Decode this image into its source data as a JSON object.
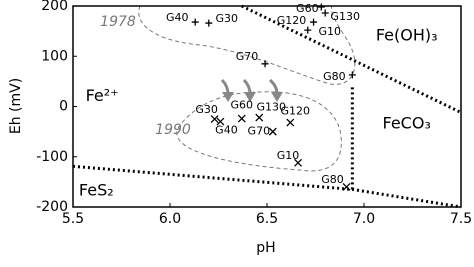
{
  "chart_data": {
    "type": "scatter",
    "x_label": "pH",
    "y_label": "Eh (mV)",
    "xlim": [
      5.5,
      7.5
    ],
    "xticks": [
      5.5,
      {
        "value": 6,
        "label": "6.0"
      },
      6.5,
      {
        "value": 7,
        "label": "7.0"
      },
      7.5
    ],
    "ylim": [
      -200,
      200
    ],
    "yticks": [
      -200,
      -100,
      0,
      100,
      200
    ],
    "grid": false,
    "series": [
      {
        "name": "1978",
        "marker": "+",
        "color": "#000000",
        "x": [
          6.13,
          6.2,
          6.78,
          6.8,
          6.74,
          6.71,
          6.49,
          6.94
        ],
        "values": [
          168,
          166,
          198,
          186,
          168,
          152,
          85,
          63
        ],
        "labels": [
          "G40",
          "G30",
          "G60",
          "G130",
          "G120",
          "G10",
          "G70",
          "G80"
        ]
      },
      {
        "name": "1990",
        "marker": "x",
        "color": "#000000",
        "x": [
          6.23,
          6.26,
          6.37,
          6.46,
          6.62,
          6.53,
          6.66,
          6.91
        ],
        "values": [
          -25,
          -30,
          -24,
          -22,
          -32,
          -50,
          -112,
          -160
        ],
        "labels": [
          "G30",
          "G40",
          "G60",
          "G130",
          "G120",
          "G70",
          "G10",
          "G80"
        ]
      }
    ],
    "boundaries": [
      {
        "x": [
          6.37,
          7.5
        ],
        "y": [
          200,
          -12
        ]
      },
      {
        "x": [
          6.94,
          6.94
        ],
        "y": [
          38,
          -165
        ]
      },
      {
        "x": [
          5.5,
          6.94,
          7.5
        ],
        "y": [
          -119,
          -165,
          -200
        ]
      }
    ],
    "regions": [
      {
        "text": "Fe(OH)₃",
        "x": 7.22,
        "y": 140
      },
      {
        "text": "Fe²⁺",
        "x": 5.65,
        "y": 20
      },
      {
        "text": "FeCO₃",
        "x": 7.22,
        "y": -35
      },
      {
        "text": "FeS₂",
        "x": 5.62,
        "y": -168
      }
    ]
  }
}
